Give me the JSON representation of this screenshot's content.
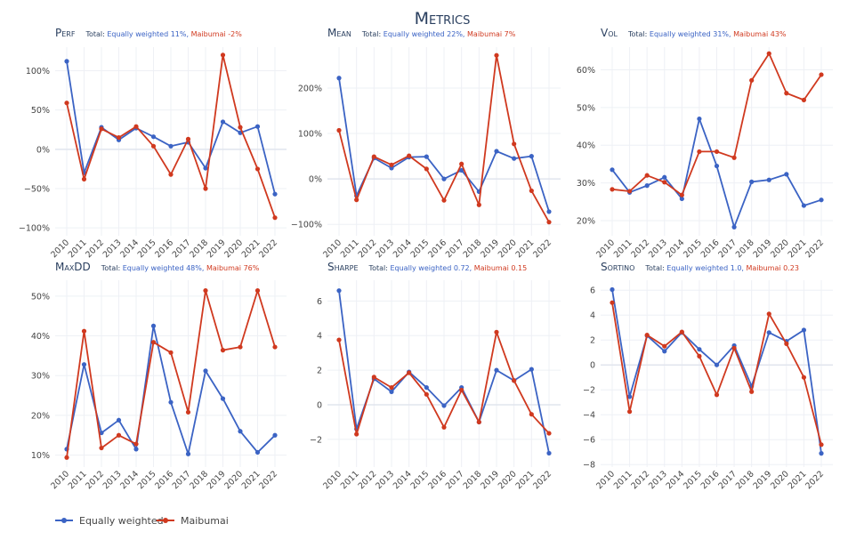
{
  "page_title": "Metrics",
  "colors": {
    "equal": "#3b63c4",
    "maibumai": "#d0391f",
    "title": "#2a3f5f",
    "tick": "#444444",
    "grid": "#eef0f5",
    "zero": "#e1e5ee"
  },
  "legend": {
    "items": [
      "Equally weighted",
      "Maibumai"
    ]
  },
  "chart_data": [
    {
      "id": "perf",
      "type": "line",
      "title": "Perf",
      "total_label": "Total:",
      "total_equal": "Equally weighted 11%,",
      "total_maibumai": "Maibumai -2%",
      "x": [
        2010,
        2011,
        2012,
        2013,
        2014,
        2015,
        2016,
        2017,
        2018,
        2019,
        2020,
        2021,
        2022
      ],
      "ylim": [
        -110,
        130
      ],
      "yticks": [
        -100,
        -50,
        0,
        50,
        100
      ],
      "ytick_labels": [
        "−100%",
        "−50%",
        "0%",
        "50%",
        "100%"
      ],
      "series": [
        {
          "name": "Equally weighted",
          "values": [
            112,
            -30,
            28,
            12,
            27,
            16,
            4,
            9,
            -24,
            35,
            21,
            29,
            -57
          ]
        },
        {
          "name": "Maibumai",
          "values": [
            59,
            -38,
            26,
            15,
            29,
            4,
            -32,
            13,
            -50,
            120,
            28,
            -25,
            -87
          ]
        }
      ]
    },
    {
      "id": "mean",
      "type": "line",
      "title": "Mean",
      "total_label": "Total:",
      "total_equal": "Equally weighted 22%,",
      "total_maibumai": "Maibumai 7%",
      "x": [
        2010,
        2011,
        2012,
        2013,
        2014,
        2015,
        2016,
        2017,
        2018,
        2019,
        2020,
        2021,
        2022
      ],
      "ylim": [
        -125,
        290
      ],
      "yticks": [
        -100,
        0,
        100,
        200
      ],
      "ytick_labels": [
        "−100%",
        "0%",
        "100%",
        "200%"
      ],
      "series": [
        {
          "name": "Equally weighted",
          "values": [
            222,
            -37,
            46,
            24,
            48,
            49,
            0,
            19,
            -28,
            61,
            45,
            50,
            -72
          ]
        },
        {
          "name": "Maibumai",
          "values": [
            107,
            -46,
            49,
            31,
            51,
            22,
            -47,
            33,
            -57,
            272,
            77,
            -26,
            -95
          ]
        }
      ]
    },
    {
      "id": "vol",
      "type": "line",
      "title": "Vol",
      "total_label": "Total:",
      "total_equal": "Equally weighted 31%,",
      "total_maibumai": "Maibumai 43%",
      "x": [
        2010,
        2011,
        2012,
        2013,
        2014,
        2015,
        2016,
        2017,
        2018,
        2019,
        2020,
        2021,
        2022
      ],
      "ylim": [
        16,
        66
      ],
      "yticks": [
        20,
        30,
        40,
        50,
        60
      ],
      "ytick_labels": [
        "20%",
        "30%",
        "40%",
        "50%",
        "60%"
      ],
      "series": [
        {
          "name": "Equally weighted",
          "values": [
            33.5,
            27.5,
            29.3,
            31.5,
            25.8,
            47,
            34.5,
            18.3,
            30.3,
            30.8,
            32.3,
            24,
            25.5
          ]
        },
        {
          "name": "Maibumai",
          "values": [
            28.3,
            27.8,
            32,
            30.2,
            26.8,
            38.3,
            38.3,
            36.7,
            57.2,
            64.3,
            53.8,
            52,
            58.7
          ]
        }
      ]
    },
    {
      "id": "maxdd",
      "type": "line",
      "title": "MaxDD",
      "total_label": "Total:",
      "total_equal": "Equally weighted 48%,",
      "total_maibumai": "Maibumai 76%",
      "x": [
        2010,
        2011,
        2012,
        2013,
        2014,
        2015,
        2016,
        2017,
        2018,
        2019,
        2020,
        2021,
        2022
      ],
      "ylim": [
        7,
        54
      ],
      "yticks": [
        10,
        20,
        30,
        40,
        50
      ],
      "ytick_labels": [
        "10%",
        "20%",
        "30%",
        "40%",
        "50%"
      ],
      "series": [
        {
          "name": "Equally weighted",
          "values": [
            11.5,
            32.8,
            15.6,
            18.8,
            11.5,
            42.5,
            23.3,
            10.3,
            31.2,
            24.2,
            16,
            10.7,
            15
          ]
        },
        {
          "name": "Maibumai",
          "values": [
            9.4,
            41.2,
            11.8,
            15,
            12.8,
            38.4,
            35.8,
            20.8,
            51.4,
            36.4,
            37.2,
            51.4,
            37.2
          ]
        }
      ]
    },
    {
      "id": "sharpe",
      "type": "line",
      "title": "Sharpe",
      "total_label": "Total:",
      "total_equal": "Equally weighted 0.72,",
      "total_maibumai": "Maibumai 0.15",
      "x": [
        2010,
        2011,
        2012,
        2013,
        2014,
        2015,
        2016,
        2017,
        2018,
        2019,
        2020,
        2021,
        2022
      ],
      "ylim": [
        -3.6,
        7.2
      ],
      "yticks": [
        -2,
        0,
        2,
        4,
        6
      ],
      "ytick_labels": [
        "−2",
        "0",
        "2",
        "4",
        "6"
      ],
      "series": [
        {
          "name": "Equally weighted",
          "values": [
            6.6,
            -1.4,
            1.5,
            0.75,
            1.9,
            1.0,
            -0.05,
            1.0,
            -1.0,
            2.0,
            1.4,
            2.05,
            -2.8
          ]
        },
        {
          "name": "Maibumai",
          "values": [
            3.75,
            -1.7,
            1.6,
            1.0,
            1.85,
            0.6,
            -1.3,
            0.85,
            -1.0,
            4.2,
            1.4,
            -0.55,
            -1.65
          ]
        }
      ]
    },
    {
      "id": "sortino",
      "type": "line",
      "title": "Sortino",
      "total_label": "Total:",
      "total_equal": "Equally weighted 1.0,",
      "total_maibumai": "Maibumai 0.23",
      "x": [
        2010,
        2011,
        2012,
        2013,
        2014,
        2015,
        2016,
        2017,
        2018,
        2019,
        2020,
        2021,
        2022
      ],
      "ylim": [
        -8.2,
        6.8
      ],
      "yticks": [
        -8,
        -6,
        -4,
        -2,
        0,
        2,
        4,
        6
      ],
      "ytick_labels": [
        "−8",
        "−6",
        "−4",
        "−2",
        "0",
        "2",
        "4",
        "6"
      ],
      "series": [
        {
          "name": "Equally weighted",
          "values": [
            6.05,
            -2.55,
            2.35,
            1.1,
            2.6,
            1.25,
            0,
            1.55,
            -1.7,
            2.6,
            1.9,
            2.8,
            -7.1
          ]
        },
        {
          "name": "Maibumai",
          "values": [
            5.0,
            -3.75,
            2.4,
            1.5,
            2.65,
            0.7,
            -2.4,
            1.35,
            -2.15,
            4.1,
            1.7,
            -1.0,
            -6.4
          ]
        }
      ]
    }
  ]
}
